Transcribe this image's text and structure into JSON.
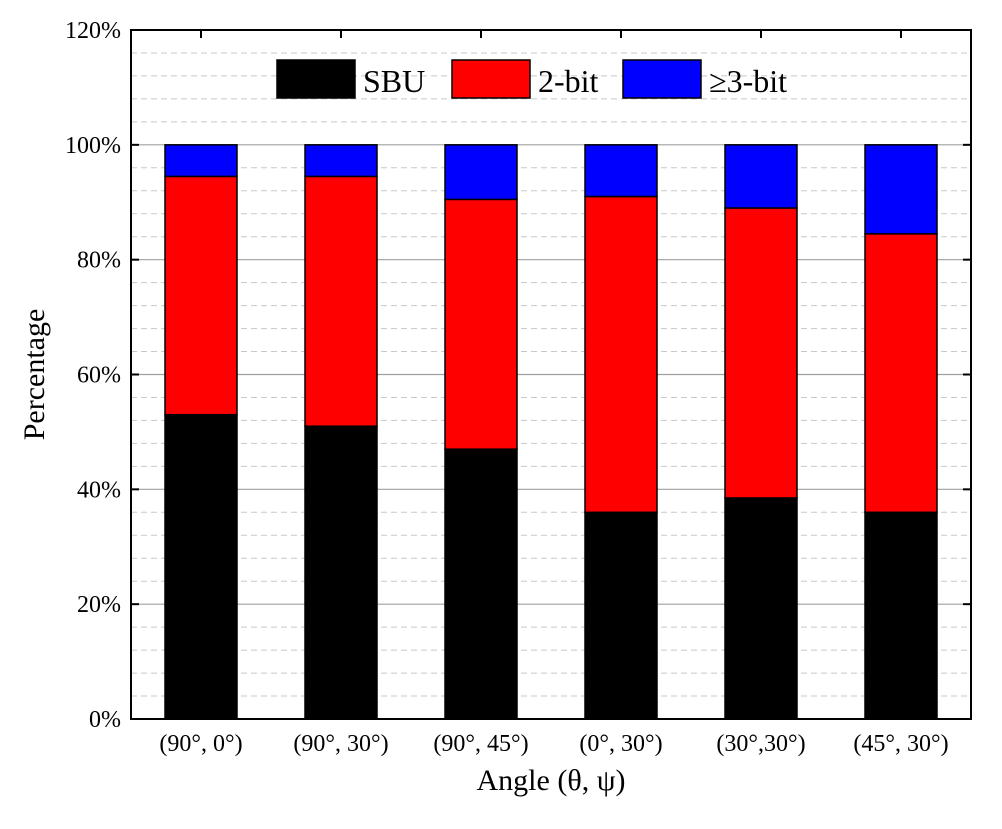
{
  "chart_data": {
    "type": "bar",
    "stacked": true,
    "categories": [
      "(90°, 0°)",
      "(90°, 30°)",
      "(90°, 45°)",
      "(0°, 30°)",
      "(30°,30°)",
      "(45°, 30°)"
    ],
    "series": [
      {
        "name": "SBU",
        "color": "#000000",
        "values": [
          53,
          51,
          47,
          36,
          38.5,
          36
        ]
      },
      {
        "name": "2-bit",
        "color": "#ff0000",
        "values": [
          41.5,
          43.5,
          43.5,
          55,
          50.5,
          48.5
        ]
      },
      {
        "name": "≥3-bit",
        "color": "#0000ff",
        "values": [
          5.5,
          5.5,
          9.5,
          9,
          11,
          15.5
        ]
      }
    ],
    "xlabel": "Angle (θ, ψ)",
    "ylabel": "Percentage",
    "ylim": [
      0,
      120
    ],
    "yticks": [
      0,
      20,
      40,
      60,
      80,
      100,
      120
    ],
    "ytick_labels": [
      "0%",
      "20%",
      "40%",
      "60%",
      "80%",
      "100%",
      "120%"
    ],
    "grid": {
      "major": true,
      "minor": true
    },
    "legend_position": "top"
  }
}
